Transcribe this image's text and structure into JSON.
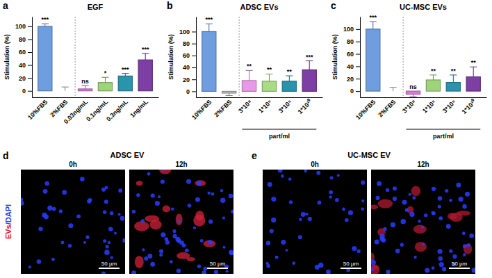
{
  "chart_data": [
    {
      "type": "bar",
      "letter": "a",
      "title": "EGF",
      "y_label": "Stimulation (%)",
      "categories": [
        "10%FBS",
        "2%FBS",
        "0.03ng/mL",
        "0.1ng/mL",
        "0.3ng/mL",
        "1ng/mL"
      ],
      "values": [
        100,
        0,
        3,
        13,
        23,
        48
      ],
      "errors": [
        4,
        6,
        5,
        8,
        4,
        10
      ],
      "annotations": [
        "***",
        null,
        "ns",
        "*",
        "***",
        "***"
      ],
      "colors": [
        "#6f9ee0",
        "#bdbdbd",
        "#d97ad9",
        "#9fd47a",
        "#2a94ad",
        "#7d3fa3"
      ],
      "ylim": [
        -10,
        115
      ],
      "yticks": [
        0,
        20,
        40,
        60,
        80,
        100
      ]
    },
    {
      "type": "bar",
      "letter": "b",
      "title": "ADSC EVs",
      "y_label": "Stimulation (%)",
      "categories": [
        "10%FBS",
        "2%FBS",
        "3*10⁸",
        "1*10⁹",
        "3*10⁹",
        "1*10¹⁰"
      ],
      "x_group_label": "part/ml",
      "values": [
        100,
        -3,
        18,
        17,
        17,
        36
      ],
      "errors": [
        13,
        4,
        17,
        12,
        9,
        15
      ],
      "annotations": [
        "***",
        null,
        "**",
        "**",
        "**",
        "***"
      ],
      "colors": [
        "#6f9ee0",
        "#bdbdbd",
        "#e89ae8",
        "#a9dc84",
        "#2a94ad",
        "#7d3fa3"
      ],
      "ylim": [
        -10,
        125
      ],
      "yticks": [
        0,
        20,
        40,
        60,
        80,
        100
      ]
    },
    {
      "type": "bar",
      "letter": "c",
      "title": "UC-MSC EVs",
      "y_label": "Stimulation (%)",
      "categories": [
        "10%FBS",
        "2%FBS",
        "3*10⁸",
        "1*10⁹",
        "3*10⁹",
        "1*10¹⁰"
      ],
      "x_group_label": "part/ml",
      "values": [
        100,
        0,
        -5,
        18,
        14,
        23
      ],
      "errors": [
        12,
        6,
        4,
        8,
        12,
        16
      ],
      "annotations": [
        "***",
        null,
        "ns",
        "**",
        "**",
        "**"
      ],
      "colors": [
        "#6f9ee0",
        "#bdbdbd",
        "#d97ad9",
        "#9fd47a",
        "#2a94ad",
        "#7d3fa3"
      ],
      "ylim": [
        -10,
        120
      ],
      "yticks": [
        0,
        20,
        40,
        60,
        80,
        100
      ]
    }
  ],
  "image_panels": [
    {
      "letter": "d",
      "title": "ADSC EV",
      "time_labels": [
        "0h",
        "12h"
      ],
      "scale_bar": "50 µm"
    },
    {
      "letter": "e",
      "title": "UC-MSC EV",
      "time_labels": [
        "0h",
        "12h"
      ],
      "scale_bar": "50 µm"
    }
  ],
  "stain_label_parts": [
    "EVs",
    "/DAPI"
  ]
}
